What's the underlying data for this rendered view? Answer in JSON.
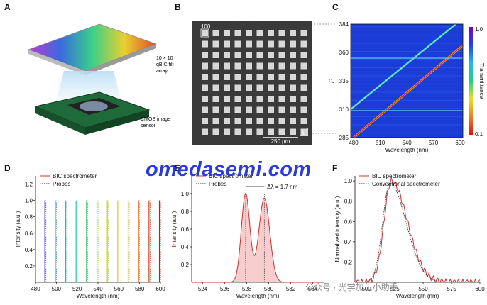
{
  "panels": {
    "a": {
      "letter": "A",
      "filter_label": "10 × 10\nqBIC filter\narray",
      "sensor_label": "CMOS image\nsensor"
    },
    "b": {
      "letter": "B",
      "label_top": "100",
      "label_bottom": "1",
      "scale": "250 µm"
    },
    "c": {
      "letter": "C",
      "ylabel": "P",
      "yticks": [
        "384",
        "360",
        "335",
        "310",
        "285"
      ],
      "xticks": [
        "480",
        "510",
        "540",
        "570",
        "600"
      ],
      "xlabel": "Wavelength (nm)",
      "cbar_label": "Transmittance",
      "cbar_top": "1.0",
      "cbar_bottom": "0.1"
    },
    "d": {
      "letter": "D"
    },
    "e": {
      "letter": "E",
      "annotation": "Δλ = 1.7 nm"
    },
    "f": {
      "letter": "F"
    }
  },
  "watermark": "omedasemi.com",
  "credit": "公众号 · 光学加工小助手",
  "chart_data": [
    {
      "type": "line",
      "panel": "D",
      "xlabel": "Wavelength (nm)",
      "ylabel": "Intensity (a.u.)",
      "xlim": [
        480,
        600
      ],
      "ylim": [
        0,
        1.3
      ],
      "xticks": [
        480,
        500,
        520,
        540,
        560,
        580,
        600
      ],
      "yticks": [
        "0.2",
        "0.4",
        "0.6",
        "0.8",
        "1.0",
        "1.2"
      ],
      "legend": [
        "BIC spectrometer",
        "Probes"
      ],
      "peaks": [
        489,
        499,
        509,
        519,
        529,
        539,
        549,
        559,
        569,
        579,
        589,
        599
      ],
      "peak_colors": [
        "#3a2fd0",
        "#2f7fe0",
        "#1fb8d8",
        "#1fc8a0",
        "#2fc860",
        "#7ad030",
        "#b8d020",
        "#e0c020",
        "#e89a20",
        "#e86a20",
        "#e04020",
        "#d01818"
      ]
    },
    {
      "type": "line",
      "panel": "E",
      "xlabel": "Wavelength (nm)",
      "ylabel": "Intensity (a.u.)",
      "xlim": [
        523,
        535
      ],
      "ylim": [
        0,
        1.2
      ],
      "xticks": [
        524,
        526,
        528,
        530,
        532,
        534
      ],
      "yticks": [
        "0.2",
        "0.4",
        "0.6",
        "0.8",
        "1.0"
      ],
      "legend": [
        "BIC spectrometer",
        "Probes"
      ],
      "peaks": [
        527.9,
        529.6
      ]
    },
    {
      "type": "line",
      "panel": "F",
      "xlabel": "Wavelength (nm)",
      "ylabel": "Normalized intensity (a.u.)",
      "xlim": [
        490,
        600
      ],
      "ylim": [
        0,
        1.05
      ],
      "xticks": [
        500,
        525,
        550,
        575,
        600
      ],
      "yticks": [
        "0.2",
        "0.4",
        "0.6",
        "0.8",
        "1.0"
      ],
      "legend": [
        "BIC spectrometer",
        "Conventional spectrometer"
      ],
      "peak": 522
    }
  ]
}
